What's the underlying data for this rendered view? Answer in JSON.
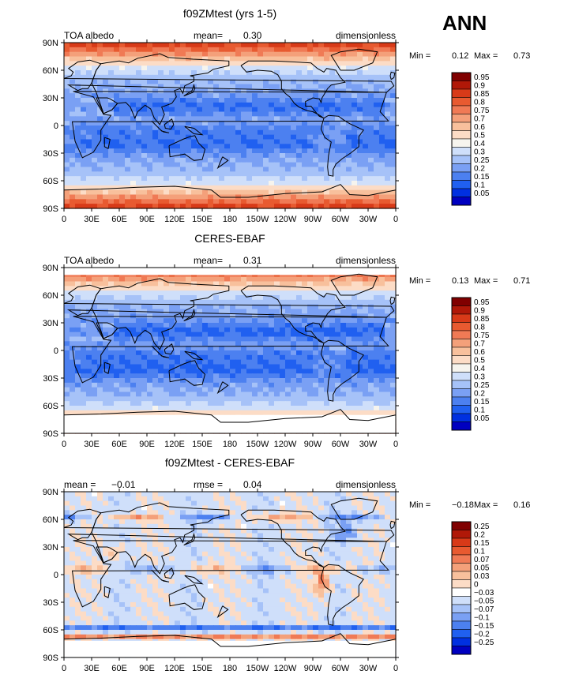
{
  "season_label": "ANN",
  "colors": {
    "abs_scale": [
      "#000080",
      "#0000C0",
      "#0030E0",
      "#2060F0",
      "#4C80F0",
      "#7AA0F4",
      "#A6C2F8",
      "#CFDFFA",
      "#F6F4EE",
      "#FCDCC6",
      "#F8C09C",
      "#F4A07A",
      "#F07A55",
      "#E85A30",
      "#D83A18",
      "#B01808",
      "#800000"
    ],
    "diff_scale": [
      "#000080",
      "#0000C0",
      "#0030E0",
      "#2060F0",
      "#4C80F0",
      "#7AA0F4",
      "#A6C2F8",
      "#CFDFFA",
      "#FFFFFF",
      "#FCDCC6",
      "#F8C09C",
      "#F4A07A",
      "#F07A55",
      "#E85A30",
      "#D83A18",
      "#B01808",
      "#800000"
    ]
  },
  "chart_data": [
    {
      "type": "heatmap",
      "title": "f09ZMtest (yrs 1-5)",
      "left_label": "TOA albedo",
      "center_label": "mean=",
      "center_value": "0.30",
      "right_label": "dimensionless",
      "min_label": "Min =",
      "min_value": "0.12",
      "max_label": "Max =",
      "max_value": "0.73",
      "lat_ticks": [
        "90N",
        "60N",
        "30N",
        "0",
        "30S",
        "60S",
        "90S"
      ],
      "lon_ticks": [
        "0",
        "30E",
        "60E",
        "90E",
        "120E",
        "150E",
        "180",
        "150W",
        "120W",
        "90W",
        "60W",
        "30W",
        "0"
      ],
      "colorbar_labels": [
        "0.95",
        "0.9",
        "0.85",
        "0.8",
        "0.75",
        "0.7",
        "0.6",
        "0.5",
        "0.4",
        "0.3",
        "0.25",
        "0.2",
        "0.15",
        "0.1",
        "0.05"
      ],
      "scale": "abs_scale"
    },
    {
      "type": "heatmap",
      "title": "CERES-EBAF",
      "left_label": "TOA albedo",
      "center_label": "mean=",
      "center_value": "0.31",
      "right_label": "dimensionless",
      "min_label": "Min =",
      "min_value": "0.13",
      "max_label": "Max =",
      "max_value": "0.71",
      "lat_ticks": [
        "90N",
        "60N",
        "30N",
        "0",
        "30S",
        "60S",
        "90S"
      ],
      "lon_ticks": [
        "0",
        "30E",
        "60E",
        "90E",
        "120E",
        "150E",
        "180",
        "150W",
        "120W",
        "90W",
        "60W",
        "30W",
        "0"
      ],
      "colorbar_labels": [
        "0.95",
        "0.9",
        "0.85",
        "0.8",
        "0.75",
        "0.7",
        "0.6",
        "0.5",
        "0.4",
        "0.3",
        "0.25",
        "0.2",
        "0.15",
        "0.1",
        "0.05"
      ],
      "scale": "abs_scale"
    },
    {
      "type": "heatmap",
      "title": "f09ZMtest - CERES-EBAF",
      "left_label": "mean =",
      "left_value": "−0.01",
      "center_label": "rmse =",
      "center_value": "0.04",
      "right_label": "dimensionless",
      "min_label": "Min =",
      "min_value": "−0.18",
      "max_label": "Max =",
      "max_value": "0.16",
      "lat_ticks": [
        "90N",
        "60N",
        "30N",
        "0",
        "30S",
        "60S",
        "90S"
      ],
      "lon_ticks": [
        "0",
        "30E",
        "60E",
        "90E",
        "120E",
        "150E",
        "180",
        "150W",
        "120W",
        "90W",
        "60W",
        "30W",
        "0"
      ],
      "colorbar_labels": [
        "0.25",
        "0.2",
        "0.15",
        "0.1",
        "0.07",
        "0.05",
        "0.03",
        "0",
        "−0.03",
        "−0.05",
        "−0.07",
        "−0.1",
        "−0.15",
        "−0.2",
        "−0.25"
      ],
      "scale": "diff_scale"
    }
  ]
}
